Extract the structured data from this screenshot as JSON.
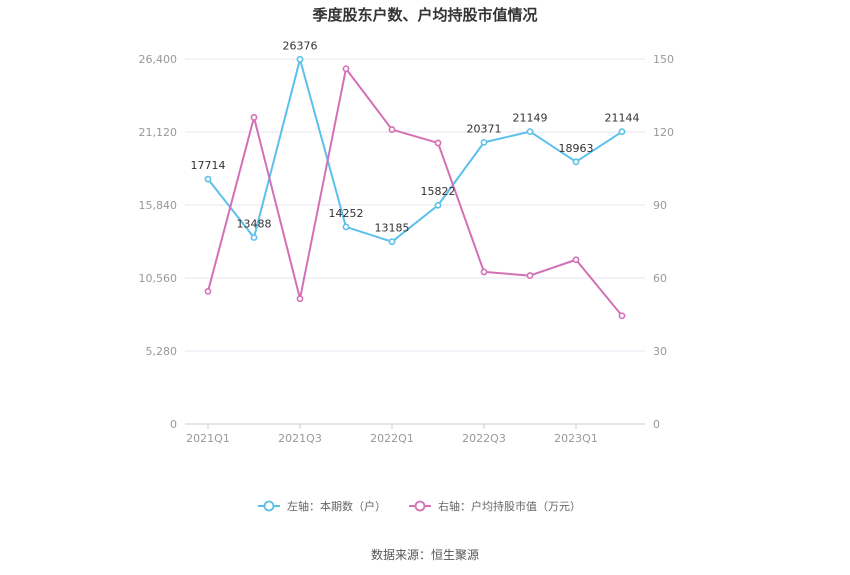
{
  "chart_data": {
    "type": "line",
    "title": "季度股东户数、户均持股市值情况",
    "x": [
      "2021Q1",
      "2021Q2",
      "2021Q3",
      "2021Q4",
      "2022Q1",
      "2022Q2",
      "2022Q3",
      "2022Q4",
      "2023Q1",
      "2023Q2"
    ],
    "x_tick_labels": [
      "2021Q1",
      "2021Q3",
      "2022Q1",
      "2022Q3",
      "2023Q1"
    ],
    "y_left": {
      "ticks": [
        "0",
        "5,280",
        "10,560",
        "15,840",
        "21,120",
        "26,400"
      ],
      "ylim": [
        0,
        26400
      ]
    },
    "y_right": {
      "ticks": [
        "0",
        "30",
        "60",
        "90",
        "120",
        "150"
      ],
      "ylim": [
        0,
        150
      ]
    },
    "series": [
      {
        "name": "左轴：本期数（户）",
        "axis": "left",
        "color": "#5bc0eb",
        "values": [
          17714,
          13488,
          26376,
          14252,
          13185,
          15822,
          20371,
          21149,
          18963,
          21144
        ],
        "labels": [
          "17714",
          "13488",
          "26376",
          "14252",
          "13185",
          "15822",
          "20371",
          "21149",
          "18963",
          "21144"
        ]
      },
      {
        "name": "右轴：户均持股市值（万元）",
        "axis": "right",
        "color": "#d470b5",
        "values": [
          54.5,
          126,
          51.5,
          146,
          121,
          115.5,
          62.5,
          61,
          67.5,
          44.5
        ]
      }
    ],
    "grid": true,
    "legend": "bottom-center"
  },
  "source": "数据来源：恒生聚源"
}
